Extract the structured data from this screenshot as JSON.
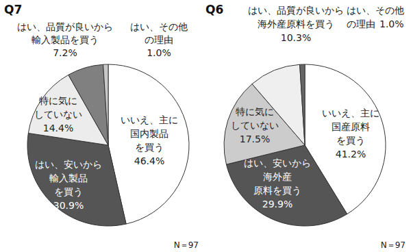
{
  "chart_data": [
    {
      "type": "pie",
      "title": "Q7",
      "categories": [
        "いいえ、主に\n国内製品\nを買う",
        "はい、安いから\n輸入製品\nを買う",
        "特に気に\nしていない",
        "はい、品質が良いから\n輸入製品を買う",
        "はい、その他\nの理由"
      ],
      "values": [
        46.4,
        30.9,
        14.4,
        7.2,
        1.0
      ],
      "value_labels": [
        "46.4%",
        "30.9%",
        "14.4%",
        "7.2%",
        "1.0%"
      ],
      "colors": [
        "#ffffff",
        "#555555",
        "#ececec",
        "#808080",
        "#c8c8c8"
      ],
      "data_labels": true,
      "annotations": [
        "N＝97"
      ]
    },
    {
      "type": "pie",
      "title": "Q6",
      "categories": [
        "いいえ、主に\n国産原料\nを買う",
        "はい、安いから\n海外産\n原料を買う",
        "特に気に\nしていない",
        "はい、品質が良いから\n海外産原料を買う",
        "はい、その他\nの理由"
      ],
      "values": [
        41.2,
        29.9,
        17.5,
        10.3,
        1.0
      ],
      "value_labels": [
        "41.2%",
        "29.9%",
        "17.5%",
        "10.3%",
        "1.0%"
      ],
      "colors": [
        "#ffffff",
        "#555555",
        "#cccccc",
        "#efefef",
        "#666666"
      ],
      "data_labels": true,
      "annotations": [
        "N＝97"
      ]
    }
  ]
}
